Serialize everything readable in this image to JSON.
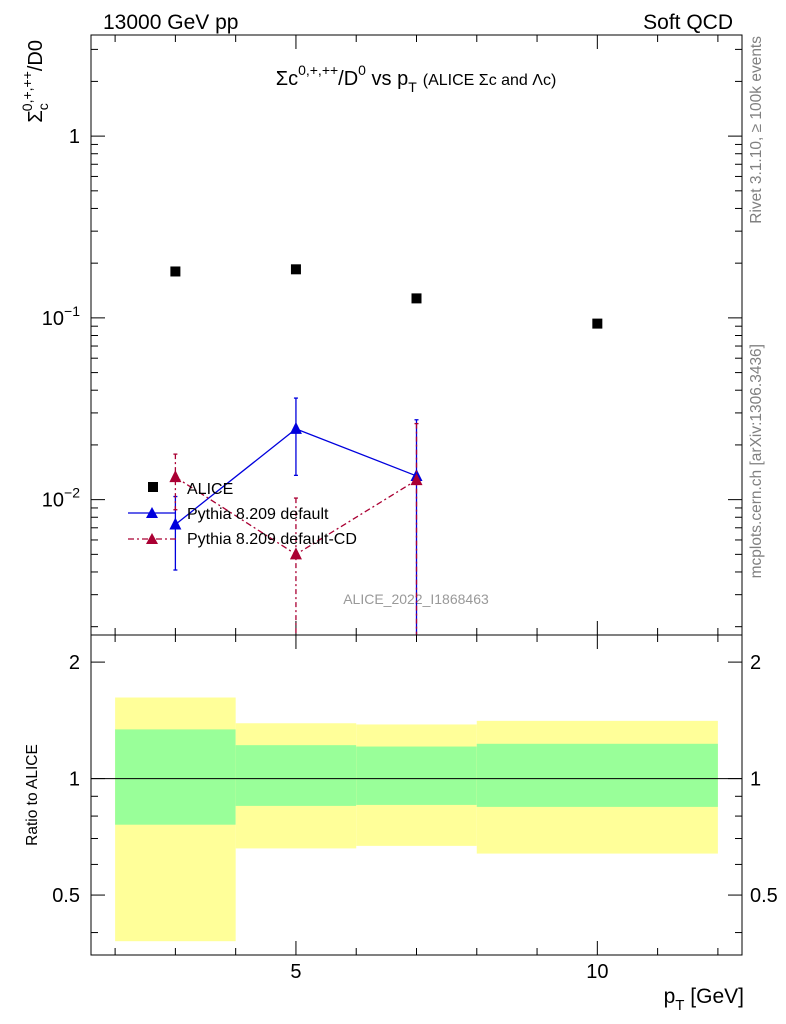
{
  "header": {
    "left": "13000 GeV pp",
    "right": "Soft QCD"
  },
  "side_labels": {
    "top": "Rivet 3.1.10, ≥ 100k events",
    "bottom": "mcplots.cern.ch [arXiv:1306.3436]"
  },
  "colors": {
    "alice": "#000000",
    "pythia_default": "#0000dd",
    "pythia_cd": "#aa0033",
    "band_inner": "#99ff99",
    "band_outer": "#ffff99",
    "watermark": "#999999"
  },
  "chart_data": [
    {
      "type": "scatter",
      "title": "Σc⁰ʴ⁺ʴ⁺⁺/D⁰ vs p_T (ALICE Σc and Λc)",
      "title_main": "Σc",
      "title_sup": "0,+,++",
      "title_mid": "/D",
      "title_sup2": "0",
      "title_vs": " vs p",
      "title_sub": "T",
      "title_paren": "(ALICE Σc and Λc)",
      "ylabel_main": "Σ",
      "ylabel_sub": "c",
      "ylabel_sup": "0,+,++",
      "ylabel_rest": "/D0",
      "watermark": "ALICE_2022_I1868463",
      "xlim": [
        1.6,
        12.4
      ],
      "ylim": [
        0.0018,
        3.6
      ],
      "yscale": "log",
      "yticks": [
        {
          "value": 1,
          "label": "1"
        },
        {
          "value": 0.1,
          "label": "10",
          "exp": "−1"
        },
        {
          "value": 0.01,
          "label": "10",
          "exp": "−2"
        }
      ],
      "legend": {
        "position": "lower-left",
        "entries": [
          "ALICE",
          "Pythia 8.209 default",
          "Pythia 8.209 default-CD"
        ]
      },
      "series": [
        {
          "name": "ALICE",
          "marker": "square",
          "x": [
            3,
            5,
            7,
            10
          ],
          "y": [
            0.18,
            0.185,
            0.128,
            0.093
          ]
        },
        {
          "name": "Pythia 8.209 default",
          "marker": "triangle",
          "line": "solid",
          "x": [
            3,
            5,
            7
          ],
          "y": [
            0.0073,
            0.0245,
            0.0135
          ],
          "ylow": [
            0.0041,
            0.0136,
            0.0005
          ],
          "yhigh": [
            0.0104,
            0.0362,
            0.0275
          ]
        },
        {
          "name": "Pythia 8.209 default-CD",
          "marker": "triangle",
          "line": "dashdot",
          "x": [
            3,
            5,
            7
          ],
          "y": [
            0.0133,
            0.005,
            0.0128
          ],
          "ylow": [
            0.0088,
            0.0005,
            0.0005
          ],
          "yhigh": [
            0.0178,
            0.0102,
            0.0262
          ]
        }
      ]
    },
    {
      "type": "area",
      "ylabel": "Ratio to ALICE",
      "xlabel_main": "p",
      "xlabel_sub": "T",
      "xlabel_rest": " [GeV]",
      "xlim": [
        1.6,
        12.4
      ],
      "ylim": [
        0.35,
        2.35
      ],
      "yscale": "log",
      "xticks": [
        5,
        10
      ],
      "yticks": [
        0.5,
        1,
        2
      ],
      "reference_line": 1,
      "bins": [
        {
          "x_low": 2,
          "x_high": 4,
          "inner_low": 0.76,
          "inner_high": 1.34,
          "outer_low": 0.38,
          "outer_high": 1.62
        },
        {
          "x_low": 4,
          "x_high": 6,
          "inner_low": 0.85,
          "inner_high": 1.22,
          "outer_low": 0.66,
          "outer_high": 1.39
        },
        {
          "x_low": 6,
          "x_high": 8,
          "inner_low": 0.855,
          "inner_high": 1.21,
          "outer_low": 0.67,
          "outer_high": 1.38
        },
        {
          "x_low": 8,
          "x_high": 12,
          "inner_low": 0.845,
          "inner_high": 1.23,
          "outer_low": 0.64,
          "outer_high": 1.41
        }
      ]
    }
  ]
}
